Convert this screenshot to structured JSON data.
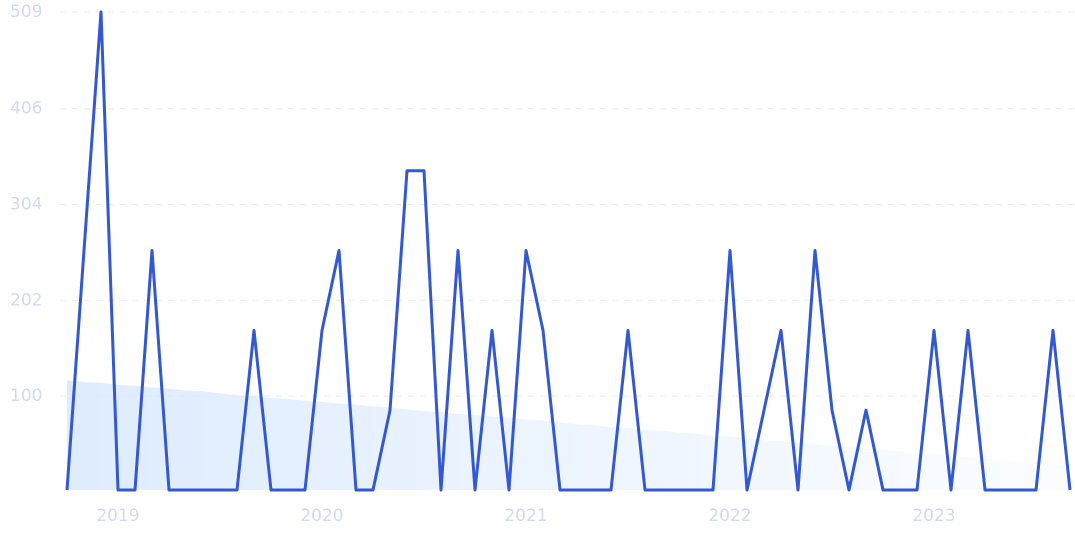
{
  "chart_data": {
    "type": "line",
    "xlim": [
      2018.75,
      2023.6667
    ],
    "xticks": [
      2019,
      2020,
      2021,
      2022,
      2023
    ],
    "ylim": [
      0,
      509
    ],
    "yticks": [
      100,
      202,
      304,
      406,
      509
    ],
    "grid": true,
    "series": [
      {
        "color": "#dbeafe",
        "fill": true,
        "values": [
          117,
          115,
          114,
          112,
          111,
          109,
          108,
          106,
          105,
          103,
          101,
          100,
          98,
          97,
          95,
          94,
          92,
          91,
          89,
          88,
          86,
          84,
          83,
          81,
          80,
          78,
          77,
          75,
          74,
          72,
          70,
          69,
          67,
          66,
          64,
          63,
          61,
          60,
          58,
          57,
          55,
          53,
          52,
          50,
          49,
          47,
          46,
          44,
          43,
          41,
          39,
          38,
          36,
          35,
          33,
          32,
          30,
          29,
          27,
          26
        ]
      },
      {
        "color": "#3358d4",
        "values": [
          0,
          255,
          509,
          0,
          0,
          255,
          0,
          0,
          0,
          0,
          0,
          170,
          0,
          0,
          0,
          170,
          255,
          0,
          0,
          85,
          340,
          340,
          0,
          255,
          0,
          170,
          0,
          255,
          170,
          0,
          0,
          0,
          0,
          170,
          0,
          0,
          0,
          0,
          0,
          255,
          0,
          85,
          170,
          0,
          255,
          85,
          0,
          85,
          0,
          0,
          0,
          170,
          0,
          170,
          0,
          0,
          0,
          0,
          170,
          0
        ]
      }
    ]
  }
}
